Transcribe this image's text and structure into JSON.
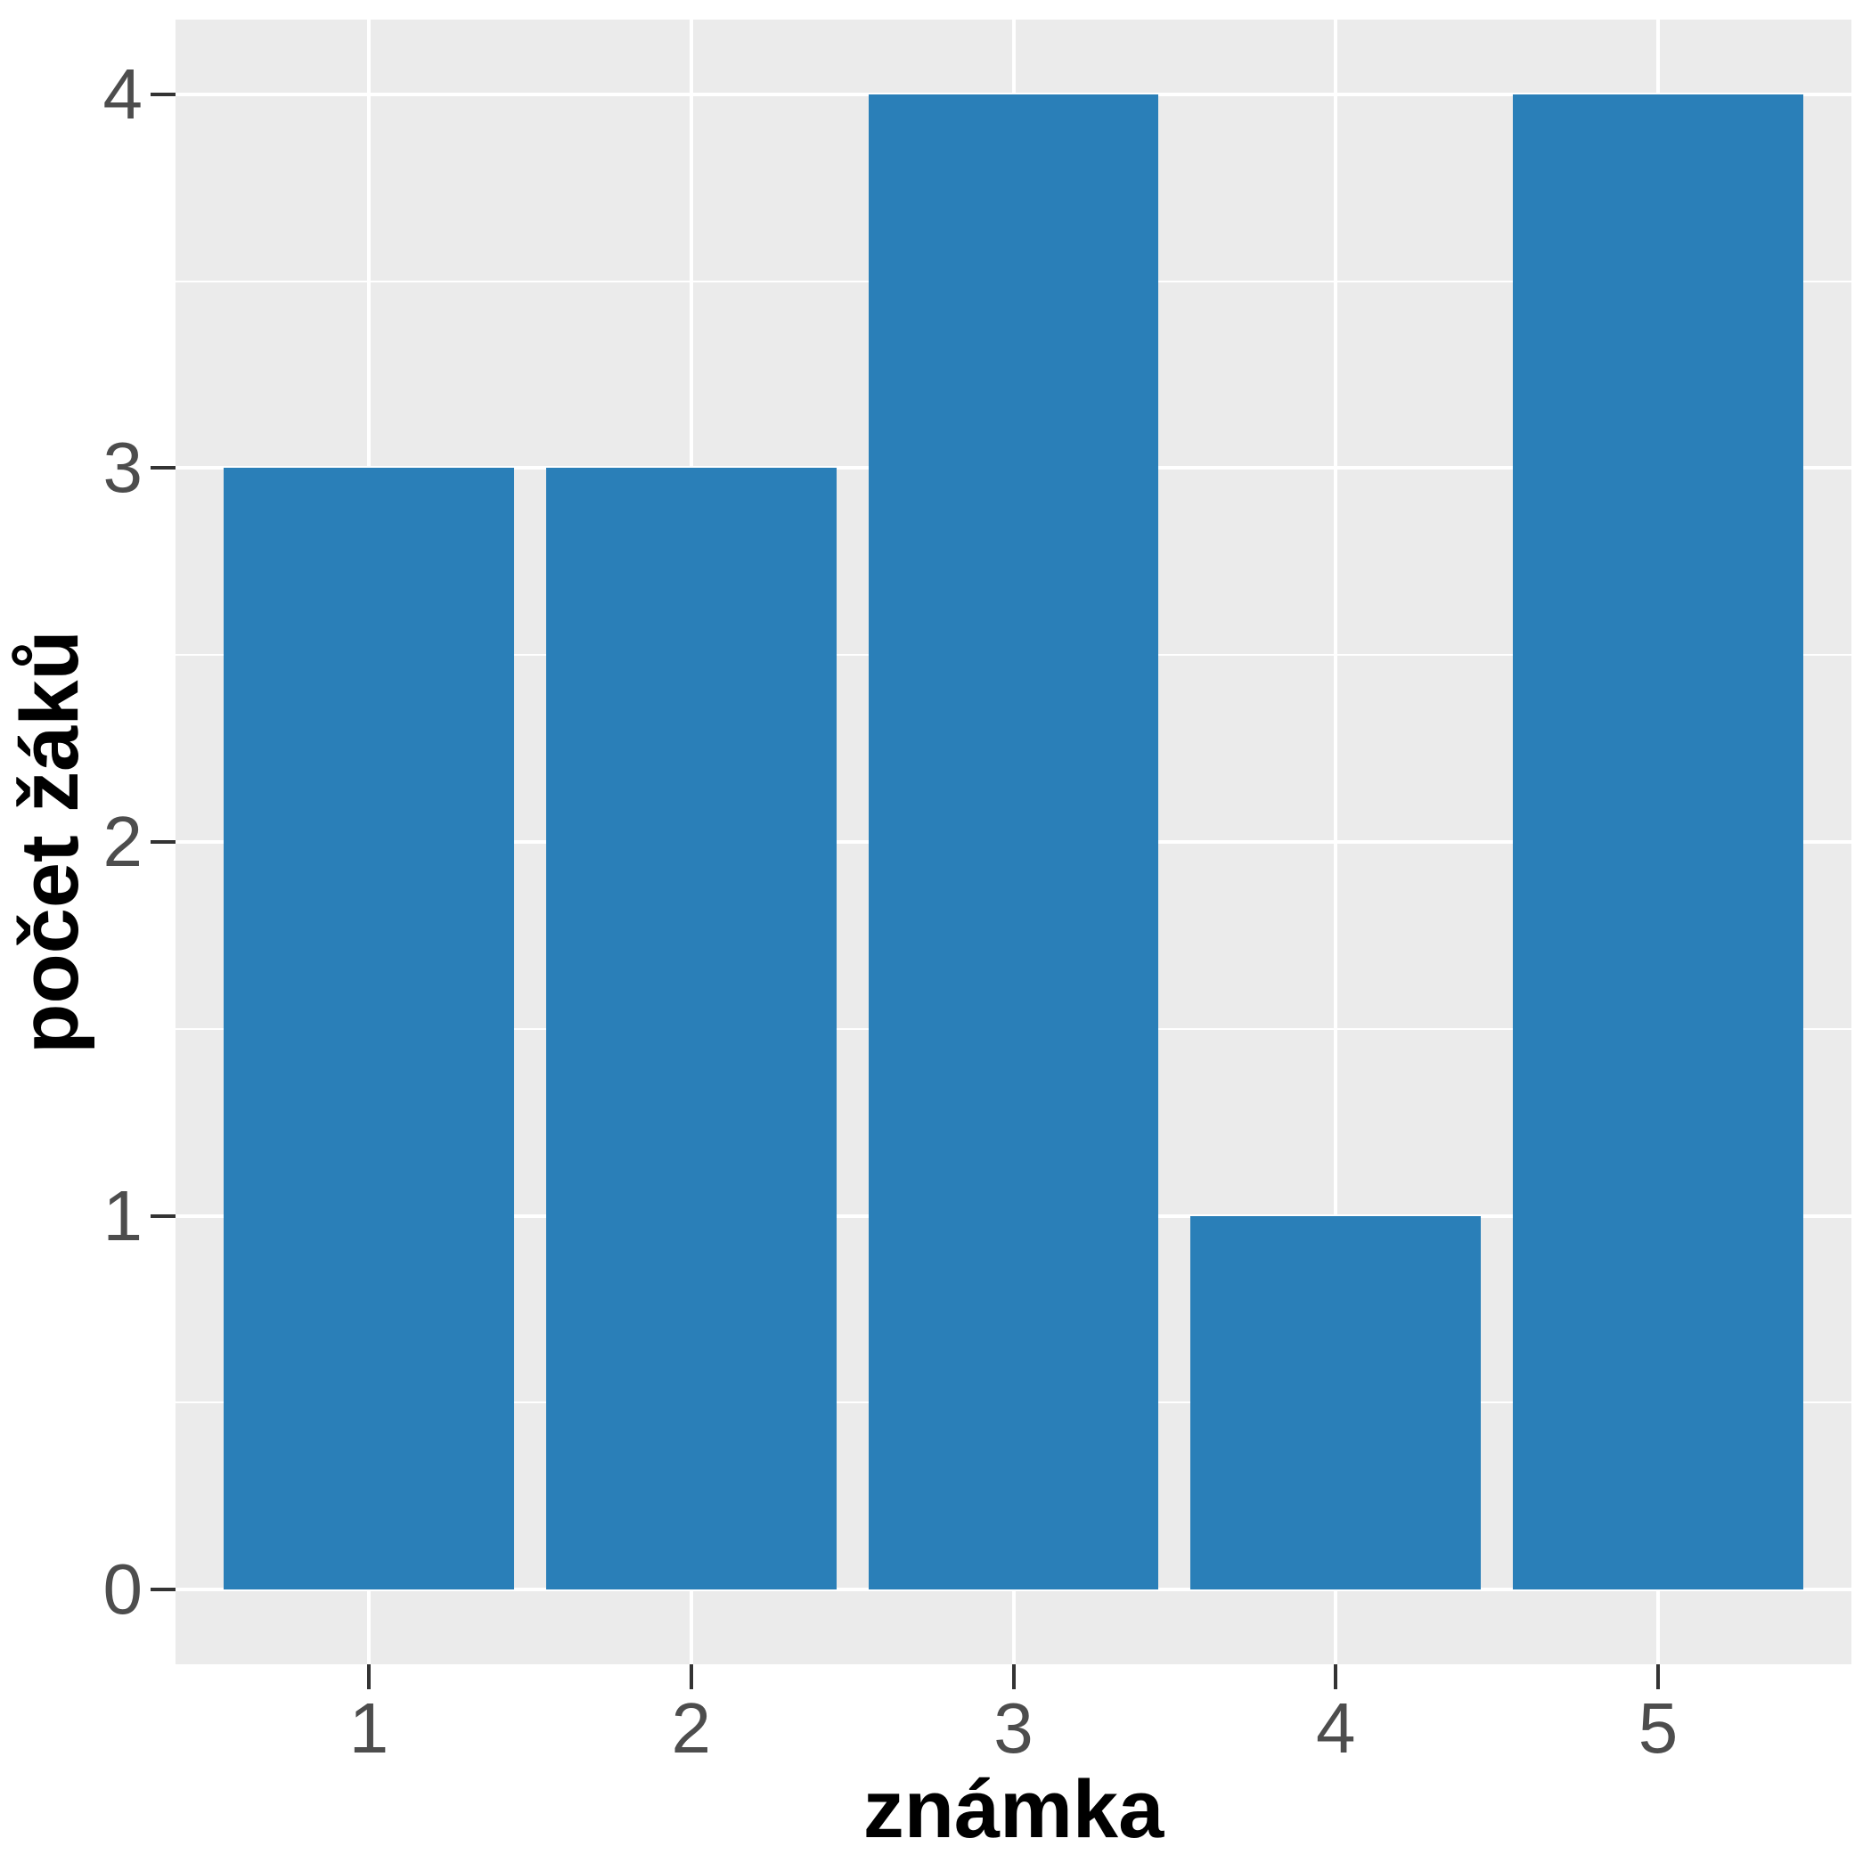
{
  "figure": {
    "background": "#FFFFFF"
  },
  "chart_data": {
    "type": "bar",
    "categories": [
      "1",
      "2",
      "3",
      "4",
      "5"
    ],
    "values": [
      3,
      3,
      4,
      1,
      4
    ],
    "title": "",
    "xlabel": "známka",
    "ylabel": "počet žáků",
    "ylim": [
      -0.2,
      4.2
    ],
    "yticks": [
      0,
      1,
      2,
      3,
      4
    ],
    "ytick_labels": [
      "0",
      "1",
      "2",
      "3",
      "4"
    ],
    "yminor": [
      0.5,
      1.5,
      2.5,
      3.5
    ],
    "grid": "on",
    "legend_position": "none",
    "bar_width_fraction": 0.9,
    "colors": {
      "bar_fill": "#2A7FB8",
      "panel_background": "#EBEBEB",
      "grid_major": "#FFFFFF",
      "grid_minor": "#FFFFFF",
      "tick_label": "#4D4D4D",
      "tick_mark": "#333333",
      "axis_title": "#000000"
    }
  }
}
